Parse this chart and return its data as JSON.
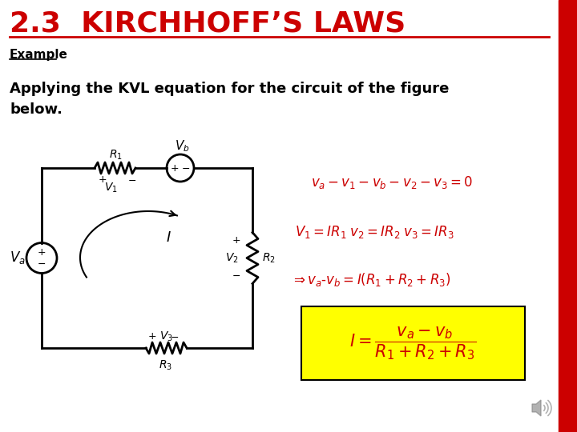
{
  "title": "2.3  KIRCHHOFF’S LAWS",
  "title_color": "#cc0000",
  "title_fontsize": 26,
  "bg_color": "#ffffff",
  "right_bar_color": "#cc0000",
  "example_text": "Example",
  "body_text": "Applying the KVL equation for the circuit of the figure\nbelow.",
  "eq1": "$v_a-v_1-v_b-v_2-v_3 = 0$",
  "eq2": "$V_1 = IR_1 \\; v_2 = IR_2 \\; v_3 = IR_3$",
  "eq3": "$\\Rightarrow v_a\\text{-}v_b = I(R_1 + R_2 + R_3)$",
  "eq4_box_color": "#ffff00",
  "eq4": "$I = \\dfrac{v_a - v_b}{R_1 + R_2 + R_3}$",
  "eq_color": "#cc0000",
  "text_color": "#000000"
}
